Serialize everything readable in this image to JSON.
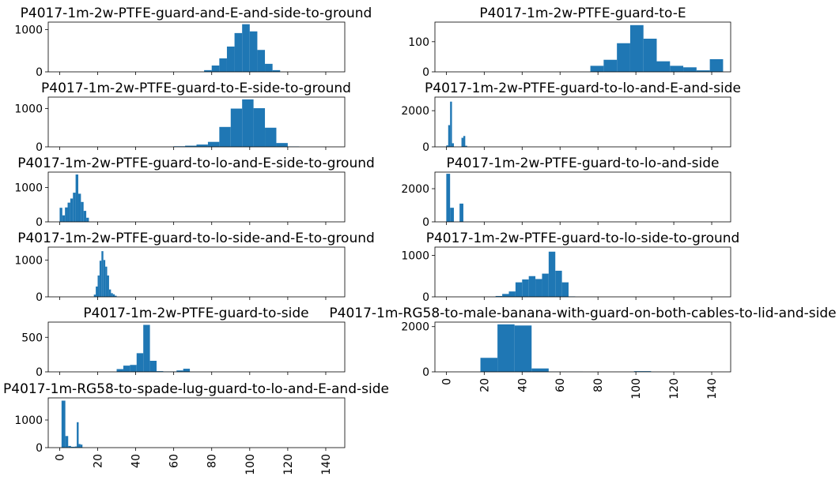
{
  "figure": {
    "bar_color": "#1f77b4",
    "background": "#ffffff"
  },
  "chart_data": [
    {
      "type": "bar",
      "title": "P4017-1m-2w-PTFE-guard-and-E-and-side-to-ground",
      "xlim": [
        -6,
        150
      ],
      "ylim": [
        0,
        1180
      ],
      "yticks": [
        0,
        1000
      ],
      "xticks": [
        0,
        20,
        40,
        60,
        80,
        100,
        120,
        140
      ],
      "show_xlabels": false,
      "bins": [
        [
          76,
          80,
          40
        ],
        [
          80,
          84,
          150
        ],
        [
          84,
          88,
          320
        ],
        [
          88,
          92,
          600
        ],
        [
          92,
          96,
          920
        ],
        [
          96,
          100,
          1130
        ],
        [
          100,
          104,
          960
        ],
        [
          104,
          108,
          520
        ],
        [
          108,
          112,
          190
        ],
        [
          112,
          116,
          40
        ]
      ]
    },
    {
      "type": "bar",
      "title": "P4017-1m-2w-PTFE-guard-to-E",
      "xlim": [
        -6,
        150
      ],
      "ylim": [
        0,
        165
      ],
      "yticks": [
        0,
        100
      ],
      "xticks": [
        0,
        20,
        40,
        60,
        80,
        100,
        120,
        140
      ],
      "show_xlabels": false,
      "bins": [
        [
          76,
          83,
          20
        ],
        [
          83,
          90,
          40
        ],
        [
          90,
          97,
          95
        ],
        [
          97,
          104,
          155
        ],
        [
          104,
          111,
          110
        ],
        [
          111,
          118,
          35
        ],
        [
          118,
          125,
          20
        ],
        [
          125,
          132,
          15
        ],
        [
          132,
          139,
          5
        ],
        [
          139,
          146,
          42
        ]
      ]
    },
    {
      "type": "bar",
      "title": "P4017-1m-2w-PTFE-guard-to-E-side-to-ground",
      "xlim": [
        -6,
        150
      ],
      "ylim": [
        0,
        1300
      ],
      "yticks": [
        0,
        1000
      ],
      "xticks": [
        0,
        20,
        40,
        60,
        80,
        100,
        120,
        140
      ],
      "show_xlabels": false,
      "bins": [
        [
          60,
          66,
          15
        ],
        [
          66,
          72,
          30
        ],
        [
          72,
          78,
          60
        ],
        [
          78,
          84,
          130
        ],
        [
          84,
          90,
          520
        ],
        [
          90,
          96,
          1000
        ],
        [
          96,
          102,
          1240
        ],
        [
          102,
          108,
          1010
        ],
        [
          108,
          114,
          500
        ],
        [
          114,
          120,
          100
        ],
        [
          120,
          126,
          10
        ]
      ]
    },
    {
      "type": "bar",
      "title": "P4017-1m-2w-PTFE-guard-to-lo-and-E-and-side",
      "xlim": [
        -6,
        150
      ],
      "ylim": [
        0,
        2750
      ],
      "yticks": [
        0,
        2000
      ],
      "xticks": [
        0,
        20,
        40,
        60,
        80,
        100,
        120,
        140
      ],
      "show_xlabels": false,
      "bins": [
        [
          0,
          1,
          80
        ],
        [
          1,
          2,
          1200
        ],
        [
          2,
          3,
          2500
        ],
        [
          3,
          4,
          200
        ],
        [
          8,
          9,
          500
        ],
        [
          9,
          10,
          600
        ],
        [
          10,
          11,
          60
        ]
      ]
    },
    {
      "type": "bar",
      "title": "P4017-1m-2w-PTFE-guard-to-lo-and-E-side-to-ground",
      "xlim": [
        -6,
        150
      ],
      "ylim": [
        0,
        1450
      ],
      "yticks": [
        0,
        1000
      ],
      "xticks": [
        0,
        20,
        40,
        60,
        80,
        100,
        120,
        140
      ],
      "show_xlabels": false,
      "bins": [
        [
          0,
          1.4,
          410
        ],
        [
          1.4,
          2.8,
          190
        ],
        [
          2.8,
          4.2,
          420
        ],
        [
          4.2,
          5.6,
          560
        ],
        [
          5.6,
          7,
          680
        ],
        [
          7,
          8.4,
          850
        ],
        [
          8.4,
          9.8,
          1380
        ],
        [
          9.8,
          11.2,
          820
        ],
        [
          11.2,
          12.6,
          580
        ],
        [
          12.6,
          14,
          320
        ],
        [
          14,
          15.4,
          120
        ]
      ]
    },
    {
      "type": "bar",
      "title": "P4017-1m-2w-PTFE-guard-to-lo-and-side",
      "xlim": [
        -6,
        150
      ],
      "ylim": [
        0,
        3000
      ],
      "yticks": [
        0,
        2000
      ],
      "xticks": [
        0,
        20,
        40,
        60,
        80,
        100,
        120,
        140
      ],
      "show_xlabels": false,
      "bins": [
        [
          0,
          2,
          2900
        ],
        [
          2,
          4,
          850
        ],
        [
          7,
          9,
          1100
        ]
      ]
    },
    {
      "type": "bar",
      "title": "P4017-1m-2w-PTFE-guard-to-lo-side-and-E-to-ground",
      "xlim": [
        -6,
        150
      ],
      "ylim": [
        0,
        1350
      ],
      "yticks": [
        0,
        1000
      ],
      "xticks": [
        0,
        20,
        40,
        60,
        80,
        100,
        120,
        140
      ],
      "show_xlabels": false,
      "bins": [
        [
          18,
          19,
          60
        ],
        [
          19,
          20,
          280
        ],
        [
          20,
          21,
          580
        ],
        [
          21,
          22,
          980
        ],
        [
          22,
          23,
          1240
        ],
        [
          23,
          24,
          1000
        ],
        [
          24,
          25,
          820
        ],
        [
          25,
          26,
          580
        ],
        [
          26,
          27,
          200
        ],
        [
          27,
          28,
          100
        ],
        [
          28,
          29,
          70
        ],
        [
          29,
          30,
          30
        ]
      ]
    },
    {
      "type": "bar",
      "title": "P4017-1m-2w-PTFE-guard-to-lo-side-to-ground",
      "xlim": [
        -6,
        150
      ],
      "ylim": [
        0,
        1200
      ],
      "yticks": [
        0,
        1000
      ],
      "xticks": [
        0,
        20,
        40,
        60,
        80,
        100,
        120,
        140
      ],
      "show_xlabels": false,
      "bins": [
        [
          26,
          29.5,
          20
        ],
        [
          29.5,
          33,
          70
        ],
        [
          33,
          36.5,
          130
        ],
        [
          36.5,
          40,
          350
        ],
        [
          40,
          43.5,
          420
        ],
        [
          43.5,
          47,
          500
        ],
        [
          47,
          50.5,
          430
        ],
        [
          50.5,
          54,
          560
        ],
        [
          54,
          57.5,
          1090
        ],
        [
          57.5,
          61,
          630
        ],
        [
          61,
          64.5,
          350
        ],
        [
          64.5,
          68,
          10
        ]
      ]
    },
    {
      "type": "bar",
      "title": "P4017-1m-2w-PTFE-guard-to-side",
      "xlim": [
        -6,
        150
      ],
      "ylim": [
        0,
        720
      ],
      "yticks": [
        0,
        500
      ],
      "xticks": [
        0,
        20,
        40,
        60,
        80,
        100,
        120,
        140
      ],
      "show_xlabels": false,
      "bins": [
        [
          30,
          33.5,
          40
        ],
        [
          33.5,
          37,
          90
        ],
        [
          37,
          40.5,
          100
        ],
        [
          40.5,
          44,
          270
        ],
        [
          44,
          47.5,
          680
        ],
        [
          47.5,
          51,
          160
        ],
        [
          51,
          54.5,
          10
        ],
        [
          54.5,
          58,
          5
        ],
        [
          58,
          61.5,
          5
        ],
        [
          61.5,
          65,
          20
        ],
        [
          65,
          68.5,
          45
        ]
      ]
    },
    {
      "type": "bar",
      "title": "P4017-1m-RG58-to-male-banana-with-guard-on-both-cables-to-lid-and-side",
      "xlim": [
        -6,
        150
      ],
      "ylim": [
        0,
        2200
      ],
      "yticks": [
        0,
        2000
      ],
      "xticks": [
        0,
        20,
        40,
        60,
        80,
        100,
        120,
        140
      ],
      "show_xlabels": true,
      "bins": [
        [
          18,
          27,
          620
        ],
        [
          27,
          36,
          2100
        ],
        [
          36,
          45,
          2050
        ],
        [
          45,
          54,
          150
        ],
        [
          54,
          63,
          8
        ],
        [
          63,
          72,
          5
        ],
        [
          99,
          108,
          30
        ]
      ]
    },
    {
      "type": "bar",
      "title": "P4017-1m-RG58-to-spade-lug-guard-to-lo-and-E-and-side",
      "xlim": [
        -6,
        150
      ],
      "ylim": [
        0,
        1800
      ],
      "yticks": [
        0,
        1000
      ],
      "xticks": [
        0,
        20,
        40,
        60,
        80,
        100,
        120,
        140
      ],
      "show_xlabels": true,
      "bins": [
        [
          1,
          3,
          1700
        ],
        [
          3,
          4.5,
          420
        ],
        [
          4.5,
          6,
          60
        ],
        [
          6,
          8,
          30
        ],
        [
          8,
          9,
          40
        ],
        [
          9,
          10,
          920
        ],
        [
          10,
          11,
          130
        ],
        [
          11,
          12,
          110
        ]
      ]
    }
  ]
}
